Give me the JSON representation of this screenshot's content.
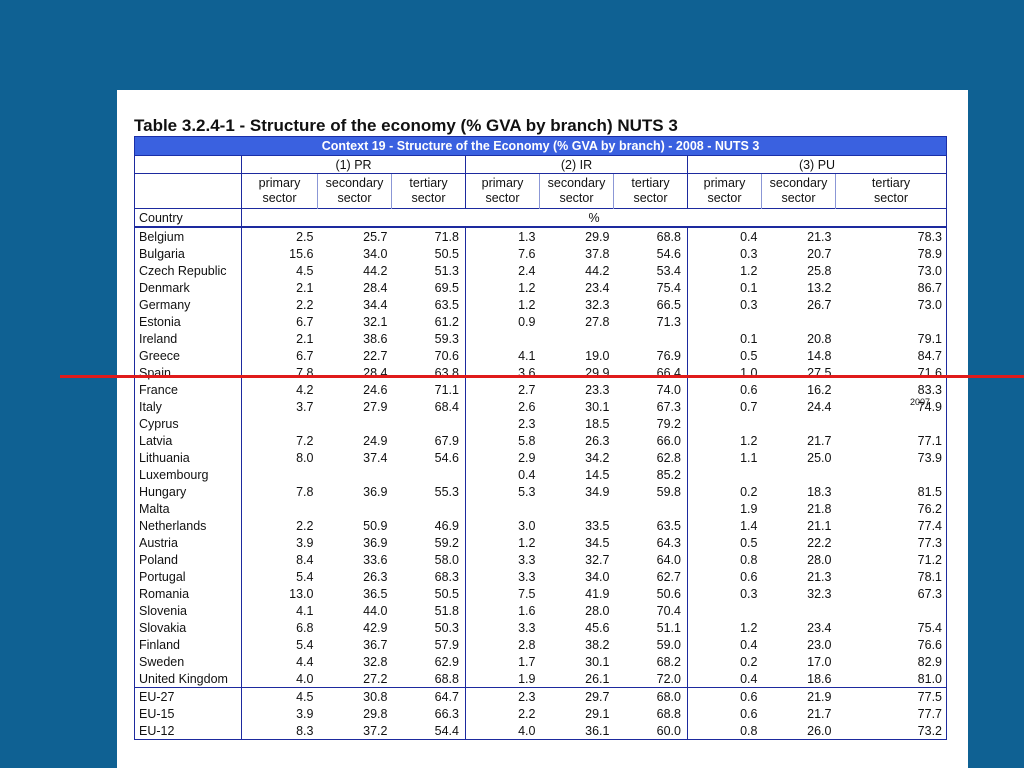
{
  "title": "Table 3.2.4-1 - Structure of the economy (% GVA by branch) NUTS 3",
  "banner": "Context 19 - Structure of the Economy (% GVA by branch) - 2008 - NUTS 3",
  "groups": [
    "(1) PR",
    "(2) IR",
    "(3) PU"
  ],
  "sub_headers": [
    [
      "primary",
      "sector"
    ],
    [
      "secondary",
      "sector"
    ],
    [
      "tertiary",
      "sector"
    ],
    [
      "primary",
      "sector"
    ],
    [
      "secondary",
      "sector"
    ],
    [
      "tertiary",
      "sector"
    ],
    [
      "primary",
      "sector"
    ],
    [
      "secondary",
      "sector"
    ],
    [
      "tertiary",
      "sector"
    ]
  ],
  "country_label": "Country",
  "unit": "%",
  "rows": [
    [
      "Belgium",
      "2.5",
      "25.7",
      "71.8",
      "1.3",
      "29.9",
      "68.8",
      "0.4",
      "21.3",
      "78.3"
    ],
    [
      "Bulgaria",
      "15.6",
      "34.0",
      "50.5",
      "7.6",
      "37.8",
      "54.6",
      "0.3",
      "20.7",
      "78.9"
    ],
    [
      "Czech Republic",
      "4.5",
      "44.2",
      "51.3",
      "2.4",
      "44.2",
      "53.4",
      "1.2",
      "25.8",
      "73.0"
    ],
    [
      "Denmark",
      "2.1",
      "28.4",
      "69.5",
      "1.2",
      "23.4",
      "75.4",
      "0.1",
      "13.2",
      "86.7"
    ],
    [
      "Germany",
      "2.2",
      "34.4",
      "63.5",
      "1.2",
      "32.3",
      "66.5",
      "0.3",
      "26.7",
      "73.0"
    ],
    [
      "Estonia",
      "6.7",
      "32.1",
      "61.2",
      "0.9",
      "27.8",
      "71.3",
      "",
      "",
      ""
    ],
    [
      "Ireland",
      "2.1",
      "38.6",
      "59.3",
      "",
      "",
      "",
      "0.1",
      "20.8",
      "79.1"
    ],
    [
      "Greece",
      "6.7",
      "22.7",
      "70.6",
      "4.1",
      "19.0",
      "76.9",
      "0.5",
      "14.8",
      "84.7"
    ],
    [
      "Spain",
      "7.8",
      "28.4",
      "63.8",
      "3.6",
      "29.9",
      "66.4",
      "1.0",
      "27.5",
      "71.6"
    ],
    [
      "France",
      "4.2",
      "24.6",
      "71.1",
      "2.7",
      "23.3",
      "74.0",
      "0.6",
      "16.2",
      "83.3"
    ],
    [
      "Italy",
      "3.7",
      "27.9",
      "68.4",
      "2.6",
      "30.1",
      "67.3",
      "0.7",
      "24.4",
      "74.9"
    ],
    [
      "Cyprus",
      "",
      "",
      "",
      "2.3",
      "18.5",
      "79.2",
      "",
      "",
      ""
    ],
    [
      "Latvia",
      "7.2",
      "24.9",
      "67.9",
      "5.8",
      "26.3",
      "66.0",
      "1.2",
      "21.7",
      "77.1"
    ],
    [
      "Lithuania",
      "8.0",
      "37.4",
      "54.6",
      "2.9",
      "34.2",
      "62.8",
      "1.1",
      "25.0",
      "73.9"
    ],
    [
      "Luxembourg",
      "",
      "",
      "",
      "0.4",
      "14.5",
      "85.2",
      "",
      "",
      ""
    ],
    [
      "Hungary",
      "7.8",
      "36.9",
      "55.3",
      "5.3",
      "34.9",
      "59.8",
      "0.2",
      "18.3",
      "81.5"
    ],
    [
      "Malta",
      "",
      "",
      "",
      "",
      "",
      "",
      "1.9",
      "21.8",
      "76.2"
    ],
    [
      "Netherlands",
      "2.2",
      "50.9",
      "46.9",
      "3.0",
      "33.5",
      "63.5",
      "1.4",
      "21.1",
      "77.4"
    ],
    [
      "Austria",
      "3.9",
      "36.9",
      "59.2",
      "1.2",
      "34.5",
      "64.3",
      "0.5",
      "22.2",
      "77.3"
    ],
    [
      "Poland",
      "8.4",
      "33.6",
      "58.0",
      "3.3",
      "32.7",
      "64.0",
      "0.8",
      "28.0",
      "71.2"
    ],
    [
      "Portugal",
      "5.4",
      "26.3",
      "68.3",
      "3.3",
      "34.0",
      "62.7",
      "0.6",
      "21.3",
      "78.1"
    ],
    [
      "Romania",
      "13.0",
      "36.5",
      "50.5",
      "7.5",
      "41.9",
      "50.6",
      "0.3",
      "32.3",
      "67.3"
    ],
    [
      "Slovenia",
      "4.1",
      "44.0",
      "51.8",
      "1.6",
      "28.0",
      "70.4",
      "",
      "",
      ""
    ],
    [
      "Slovakia",
      "6.8",
      "42.9",
      "50.3",
      "3.3",
      "45.6",
      "51.1",
      "1.2",
      "23.4",
      "75.4"
    ],
    [
      "Finland",
      "5.4",
      "36.7",
      "57.9",
      "2.8",
      "38.2",
      "59.0",
      "0.4",
      "23.0",
      "76.6"
    ],
    [
      "Sweden",
      "4.4",
      "32.8",
      "62.9",
      "1.7",
      "30.1",
      "68.2",
      "0.2",
      "17.0",
      "82.9"
    ],
    [
      "United Kingdom",
      "4.0",
      "27.2",
      "68.8",
      "1.9",
      "26.1",
      "72.0",
      "0.4",
      "18.6",
      "81.0"
    ]
  ],
  "totals": [
    [
      "EU-27",
      "4.5",
      "30.8",
      "64.7",
      "2.3",
      "29.7",
      "68.0",
      "0.6",
      "21.9",
      "77.5"
    ],
    [
      "EU-15",
      "3.9",
      "29.8",
      "66.3",
      "2.2",
      "29.1",
      "68.8",
      "0.6",
      "21.7",
      "77.7"
    ],
    [
      "EU-12",
      "8.3",
      "37.2",
      "54.4",
      "4.0",
      "36.1",
      "60.0",
      "0.8",
      "26.0",
      "73.2"
    ]
  ],
  "notes": {
    "italy_year": "2007"
  },
  "colors": {
    "background": "#0f6193",
    "banner": "#3a61e0",
    "rule": "#e01b1b"
  }
}
